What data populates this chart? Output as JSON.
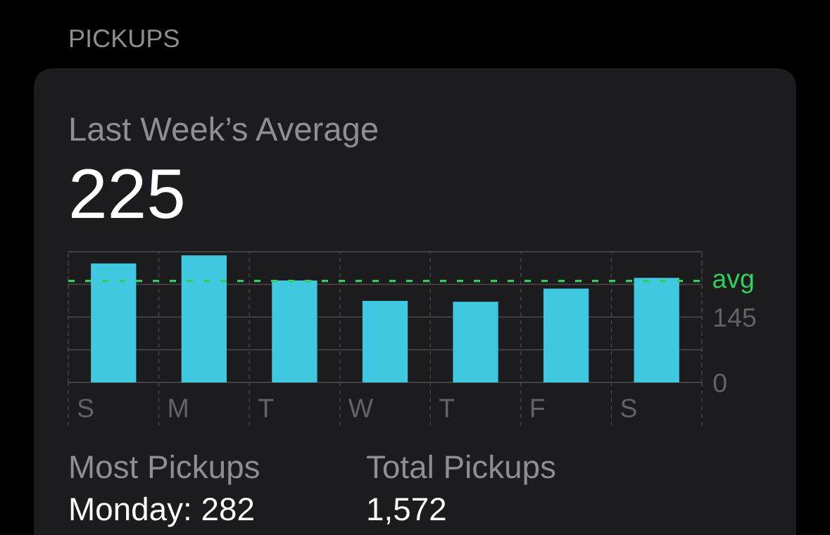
{
  "chart_data": {
    "type": "bar",
    "title": "PICKUPS",
    "subtitle": "Last Week’s Average",
    "categories": [
      "S",
      "M",
      "T",
      "W",
      "T",
      "F",
      "S"
    ],
    "values": [
      264,
      282,
      226,
      181,
      179,
      208,
      232
    ],
    "color": "#40c8e0",
    "ylim": [
      0,
      290
    ],
    "yticks": [
      0,
      {
        "value": 72.5,
        "label": null
      },
      145,
      {
        "value": 217.5,
        "label": null
      },
      {
        "value": 290,
        "label": null
      }
    ],
    "grid": true,
    "ref_lines": [
      {
        "axis": "y",
        "value": 225,
        "label": "avg",
        "color": "#30d158",
        "line_style": "dashed"
      }
    ],
    "annotations": [
      "225",
      "Most Pickups",
      "Monday: 282",
      "Total Pickups",
      "1,572"
    ]
  }
}
